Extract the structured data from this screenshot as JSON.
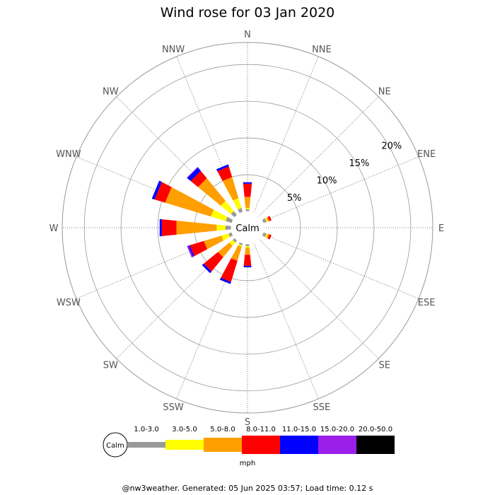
{
  "chart_data": {
    "type": "wind-rose",
    "title": "Wind rose for 03 Jan 2020",
    "directions": [
      "N",
      "NNE",
      "NE",
      "ENE",
      "E",
      "ESE",
      "SE",
      "SSE",
      "S",
      "SSW",
      "SW",
      "WSW",
      "W",
      "WNW",
      "NW",
      "NNW"
    ],
    "radial_ticks": [
      {
        "value": 5,
        "label": "5%"
      },
      {
        "value": 10,
        "label": "10%"
      },
      {
        "value": 15,
        "label": "15%"
      },
      {
        "value": 20,
        "label": "20%"
      }
    ],
    "radial_max": 23,
    "calm_label": "Calm",
    "speed_unit": "mph",
    "speed_bins": [
      {
        "label": "1.0-3.0",
        "color": "#999999"
      },
      {
        "label": "3.0-5.0",
        "color": "#ffff00"
      },
      {
        "label": "5.0-8.0",
        "color": "#ff9f00"
      },
      {
        "label": "8.0-11.0",
        "color": "#ff0000"
      },
      {
        "label": "11.0-15.0",
        "color": "#0000ff"
      },
      {
        "label": "15.0-20.0",
        "color": "#9b1fe8"
      },
      {
        "label": "20.0-50.0",
        "color": "#000000"
      }
    ],
    "values_cumulative_percent": [
      [
        0.3,
        0.5,
        2.0,
        3.8,
        4.0,
        4.0,
        4.0
      ],
      [
        0.0,
        0.0,
        0.0,
        0.0,
        0.0,
        0.0,
        0.0
      ],
      [
        0.0,
        0.0,
        0.0,
        0.0,
        0.0,
        0.0,
        0.0
      ],
      [
        0.5,
        0.7,
        0.9,
        1.2,
        1.2,
        1.2,
        1.2
      ],
      [
        0.0,
        0.0,
        0.0,
        0.0,
        0.0,
        0.0,
        0.0
      ],
      [
        0.5,
        0.7,
        0.9,
        1.2,
        1.2,
        1.2,
        1.2
      ],
      [
        0.0,
        0.0,
        0.0,
        0.0,
        0.0,
        0.0,
        0.0
      ],
      [
        0.0,
        0.0,
        0.0,
        0.0,
        0.0,
        0.0,
        0.0
      ],
      [
        0.3,
        0.5,
        1.5,
        3.0,
        3.2,
        3.2,
        3.2
      ],
      [
        0.3,
        0.5,
        2.5,
        5.5,
        5.8,
        5.8,
        5.8
      ],
      [
        0.4,
        1.0,
        3.0,
        5.5,
        5.8,
        5.8,
        5.8
      ],
      [
        0.5,
        1.5,
        4.0,
        6.0,
        6.2,
        6.4,
        6.4
      ],
      [
        0.8,
        2.0,
        7.5,
        9.5,
        9.8,
        9.8,
        9.8
      ],
      [
        0.9,
        3.0,
        9.5,
        11.0,
        11.4,
        11.4,
        11.4
      ],
      [
        0.7,
        2.5,
        6.5,
        7.8,
        8.4,
        8.5,
        8.5
      ],
      [
        0.6,
        2.0,
        5.0,
        6.5,
        6.8,
        6.8,
        6.8
      ]
    ]
  },
  "footer": "@nw3weather. Generated: 05 Jun 2025 03:57; Load time: 0.12 s"
}
